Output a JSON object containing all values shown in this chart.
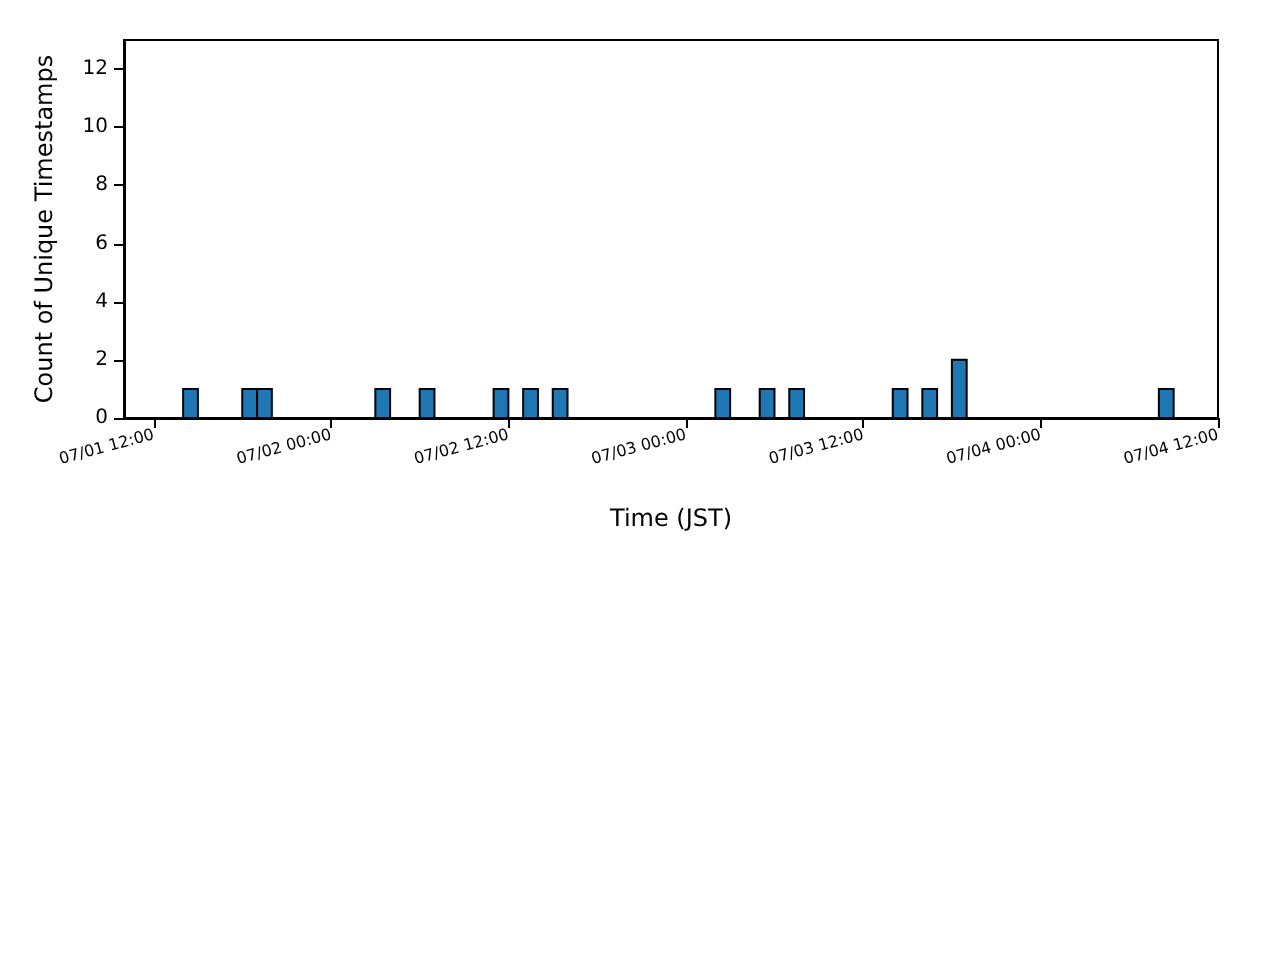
{
  "chart_data": {
    "type": "histogram",
    "xlabel": "Time (JST)",
    "ylabel": "Count of Unique Timestamps",
    "bins": [
      "--07-01T11:00",
      "--07-01T12:00",
      "--07-01T13:00",
      "--07-01T14:00",
      "--07-01T15:00",
      "--07-01T16:00",
      "--07-01T17:00",
      "--07-01T18:00",
      "--07-01T19:00",
      "--07-01T20:00",
      "--07-01T21:00",
      "--07-01T22:00",
      "--07-01T23:00",
      "--07-02T00:00",
      "--07-02T01:00",
      "--07-02T02:00",
      "--07-02T03:00",
      "--07-02T04:00",
      "--07-02T05:00",
      "--07-02T06:00",
      "--07-02T07:00",
      "--07-02T08:00",
      "--07-02T09:00",
      "--07-02T10:00",
      "--07-02T11:00",
      "--07-02T12:00",
      "--07-02T13:00",
      "--07-02T14:00",
      "--07-02T15:00",
      "--07-02T16:00",
      "--07-02T17:00",
      "--07-02T18:00",
      "--07-02T19:00",
      "--07-02T20:00",
      "--07-02T21:00",
      "--07-02T22:00",
      "--07-02T23:00",
      "--07-03T00:00",
      "--07-03T01:00",
      "--07-03T02:00",
      "--07-03T03:00",
      "--07-03T04:00",
      "--07-03T05:00",
      "--07-03T06:00",
      "--07-03T07:00",
      "--07-03T08:00",
      "--07-03T09:00",
      "--07-03T10:00",
      "--07-03T11:00",
      "--07-03T12:00",
      "--07-03T13:00",
      "--07-03T14:00",
      "--07-03T15:00",
      "--07-03T16:00",
      "--07-03T17:00",
      "--07-03T18:00",
      "--07-03T19:00",
      "--07-03T20:00",
      "--07-03T21:00",
      "--07-03T22:00",
      "--07-03T23:00",
      "--07-04T00:00",
      "--07-04T01:00",
      "--07-04T02:00",
      "--07-04T03:00",
      "--07-04T04:00",
      "--07-04T05:00",
      "--07-04T06:00",
      "--07-04T07:00",
      "--07-04T08:00",
      "--07-04T09:00"
    ],
    "values": [
      0,
      0,
      0,
      1,
      0,
      0,
      0,
      1,
      1,
      0,
      0,
      0,
      0,
      0,
      0,
      0,
      1,
      0,
      0,
      1,
      0,
      0,
      0,
      0,
      1,
      0,
      1,
      0,
      1,
      0,
      0,
      0,
      0,
      0,
      0,
      0,
      0,
      0,
      0,
      1,
      0,
      0,
      1,
      0,
      1,
      0,
      0,
      0,
      0,
      0,
      0,
      1,
      0,
      1,
      0,
      2,
      0,
      0,
      0,
      0,
      0,
      0,
      0,
      0,
      0,
      0,
      0,
      0,
      0,
      1
    ],
    "color": "#1f77b4",
    "xlim": [
      "--07-01T10:00",
      "--07-04T12:00"
    ],
    "xticks": [
      {
        "value": "--07-01T12:00",
        "label": "07/01 12:00"
      },
      {
        "value": "--07-02T00:00",
        "label": "07/02 00:00"
      },
      {
        "value": "--07-02T12:00",
        "label": "07/02 12:00"
      },
      {
        "value": "--07-03T00:00",
        "label": "07/03 00:00"
      },
      {
        "value": "--07-03T12:00",
        "label": "07/03 12:00"
      },
      {
        "value": "--07-04T00:00",
        "label": "07/04 00:00"
      },
      {
        "value": "--07-04T12:00",
        "label": "07/04 12:00"
      }
    ],
    "ylim": [
      0,
      13
    ],
    "yticks": [
      0,
      2,
      4,
      6,
      8,
      10,
      12
    ],
    "grid": false
  }
}
